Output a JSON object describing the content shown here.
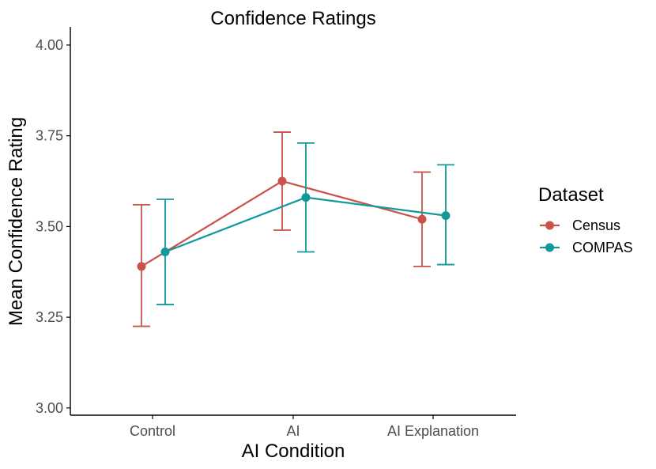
{
  "chart_data": {
    "type": "line",
    "title": "Confidence Ratings",
    "xlabel": "AI Condition",
    "ylabel": "Mean Confidence Rating",
    "categories": [
      "Control",
      "AI",
      "AI Explanation"
    ],
    "ylim": [
      2.98,
      4.05
    ],
    "yticks": [
      3.0,
      3.25,
      3.5,
      3.75,
      4.0
    ],
    "ytick_labels": [
      "3.00",
      "3.25",
      "3.50",
      "3.75",
      "4.00"
    ],
    "grid": false,
    "legend": {
      "title": "Dataset",
      "position": "right"
    },
    "series": [
      {
        "name": "Census",
        "color": "#c9524a",
        "values": [
          3.39,
          3.625,
          3.52
        ],
        "lower": [
          3.225,
          3.49,
          3.39
        ],
        "upper": [
          3.56,
          3.76,
          3.65
        ]
      },
      {
        "name": "COMPAS",
        "color": "#11999a",
        "values": [
          3.43,
          3.58,
          3.53
        ],
        "lower": [
          3.285,
          3.43,
          3.395
        ],
        "upper": [
          3.575,
          3.73,
          3.67
        ]
      }
    ]
  }
}
